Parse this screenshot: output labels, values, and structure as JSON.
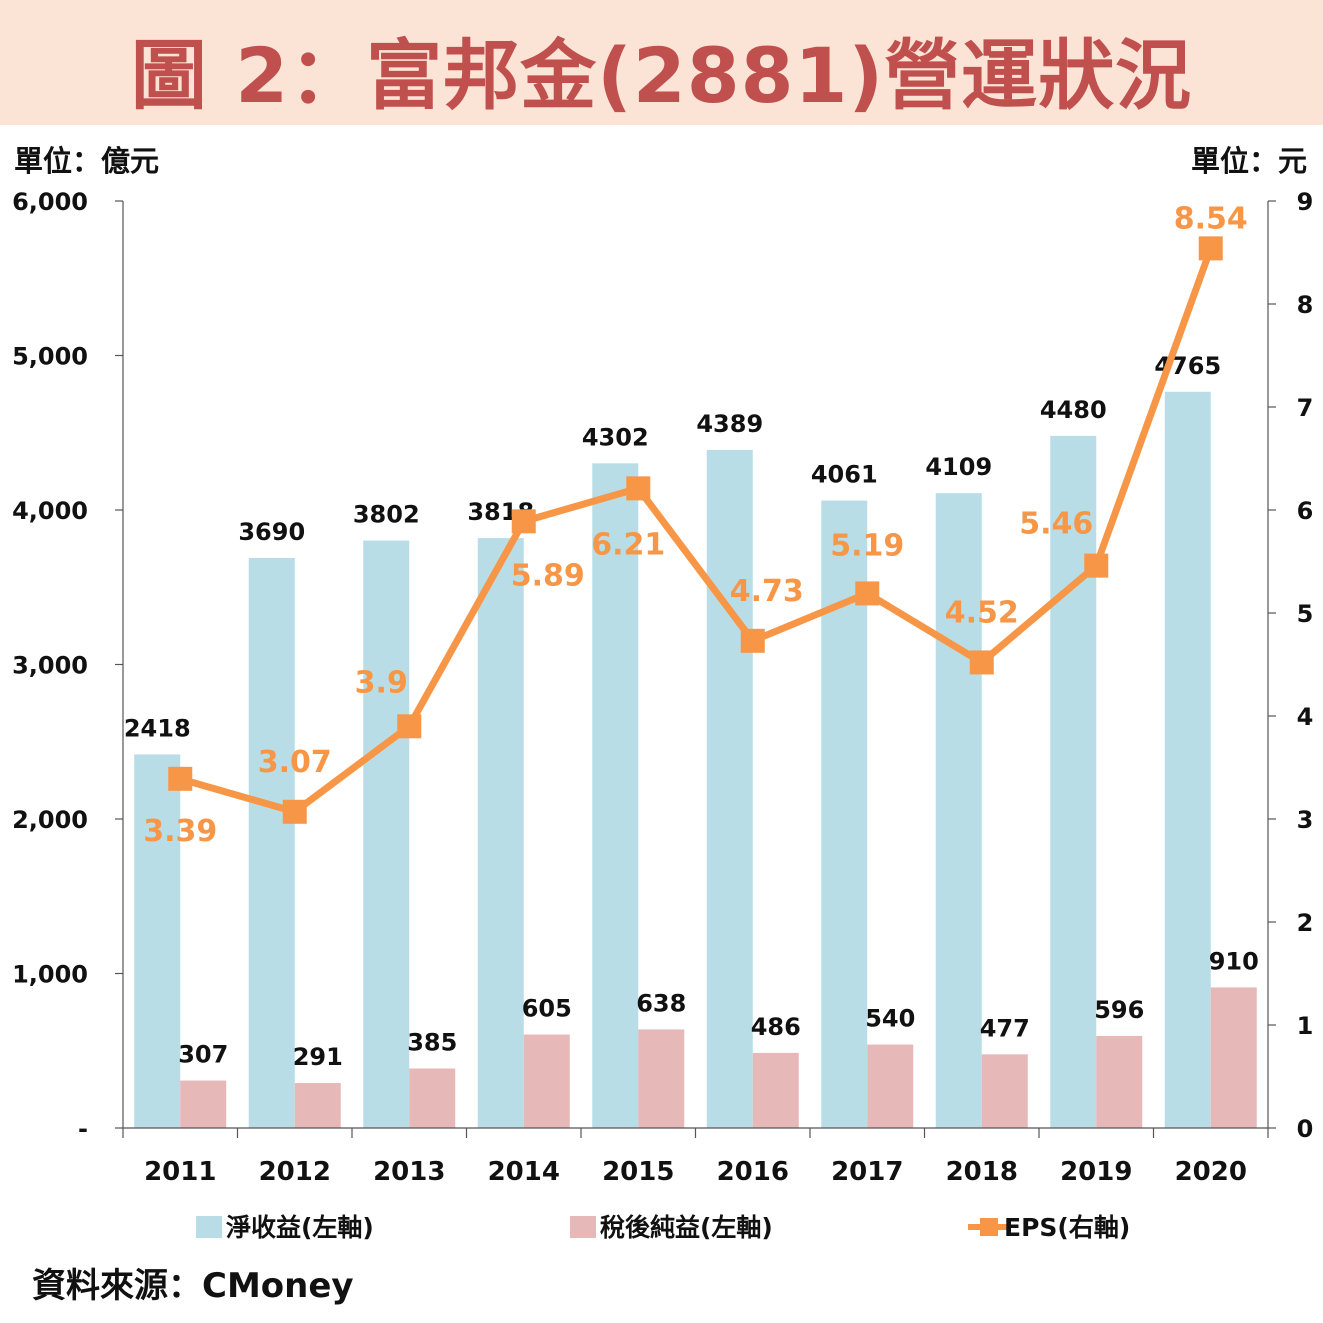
{
  "header": {
    "title": "圖 2：富邦金(2881)營運狀況"
  },
  "units": {
    "left": "單位：億元",
    "right": "單位：元"
  },
  "source": "資料來源：CMoney",
  "colors": {
    "title_bg": "#fbe3d6",
    "title_text": "#c0504d",
    "net_revenue": "#b8dde7",
    "net_income": "#e6b9b8",
    "eps": "#f79646"
  },
  "chart_data": {
    "type": "bar+line",
    "categories": [
      "2011",
      "2012",
      "2013",
      "2014",
      "2015",
      "2016",
      "2017",
      "2018",
      "2019",
      "2020"
    ],
    "series": [
      {
        "name": "淨收益(左軸)",
        "axis": "left",
        "type": "bar",
        "values": [
          2418,
          3690,
          3802,
          3818,
          4302,
          4389,
          4061,
          4109,
          4480,
          4765
        ],
        "labels": [
          "2418",
          "3690",
          "3802",
          "3818",
          "4302",
          "4389",
          "4061",
          "4109",
          "4480",
          "4765"
        ]
      },
      {
        "name": "稅後純益(左軸)",
        "axis": "left",
        "type": "bar",
        "values": [
          307,
          291,
          385,
          605,
          638,
          486,
          540,
          477,
          596,
          910
        ],
        "labels": [
          "307",
          "291",
          "385",
          "605",
          "638",
          "486",
          "540",
          "477",
          "596",
          "910"
        ]
      },
      {
        "name": "EPS(右軸)",
        "axis": "right",
        "type": "line",
        "values": [
          3.39,
          3.07,
          3.9,
          5.89,
          6.21,
          4.73,
          5.19,
          4.52,
          5.46,
          8.54
        ],
        "labels": [
          "3.39",
          "3.07",
          "3.9",
          "5.89",
          "6.21",
          "4.73",
          "5.19",
          "4.52",
          "5.46",
          "8.54"
        ]
      }
    ],
    "y_left": {
      "min": 0,
      "max": 6000,
      "ticks": [
        0,
        1000,
        2000,
        3000,
        4000,
        5000,
        6000
      ],
      "tick_labels": [
        "-",
        "1,000",
        "2,000",
        "3,000",
        "4,000",
        "5,000",
        "6,000"
      ]
    },
    "y_right": {
      "min": 0,
      "max": 9,
      "ticks": [
        0,
        1,
        2,
        3,
        4,
        5,
        6,
        7,
        8,
        9
      ],
      "tick_labels": [
        "0",
        "1",
        "2",
        "3",
        "4",
        "5",
        "6",
        "7",
        "8",
        "9"
      ]
    },
    "legend": {
      "position": "bottom"
    },
    "grid": false
  }
}
